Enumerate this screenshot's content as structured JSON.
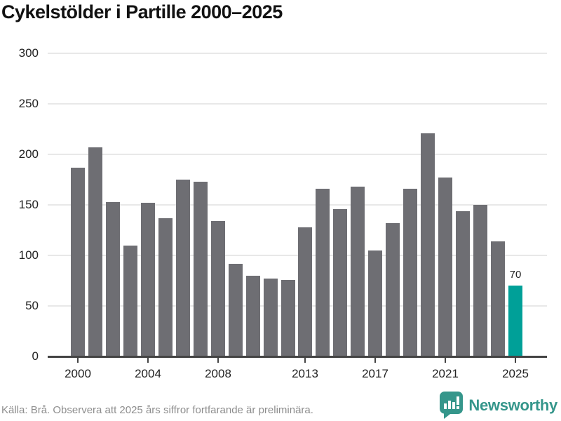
{
  "title": "Cykelstölder i Partille 2000–2025",
  "footer": {
    "source_note": "Källa: Brå. Observera att 2025 års siffror fortfarande är preliminära.",
    "brand_name": "Newsworthy"
  },
  "colors": {
    "bar_default": "#6e6e73",
    "bar_highlight": "#00a098",
    "gridline": "#e8e8e8",
    "axis": "#444444",
    "title_text": "#111111",
    "tick_text": "#222222",
    "value_label_text": "#222222",
    "footer_text": "#8d8d8d",
    "brand_teal": "#35968b"
  },
  "chart_data": {
    "type": "bar",
    "title": "Cykelstölder i Partille 2000–2025",
    "xlabel": "",
    "ylabel": "",
    "x": [
      2000,
      2001,
      2002,
      2003,
      2004,
      2005,
      2006,
      2007,
      2008,
      2009,
      2010,
      2011,
      2012,
      2013,
      2014,
      2015,
      2016,
      2017,
      2018,
      2019,
      2020,
      2021,
      2022,
      2023,
      2024,
      2025
    ],
    "values": [
      187,
      207,
      153,
      110,
      152,
      137,
      175,
      173,
      134,
      92,
      80,
      77,
      76,
      128,
      166,
      146,
      168,
      105,
      132,
      166,
      221,
      177,
      144,
      150,
      114,
      70
    ],
    "highlight_year": 2025,
    "highlight_value_label": "70",
    "ylim": [
      0,
      300
    ],
    "y_ticks": [
      0,
      50,
      100,
      150,
      200,
      250,
      300
    ],
    "x_ticks": [
      2000,
      2004,
      2008,
      2013,
      2017,
      2021,
      2025
    ],
    "grid": "horizontal",
    "legend": "none"
  }
}
